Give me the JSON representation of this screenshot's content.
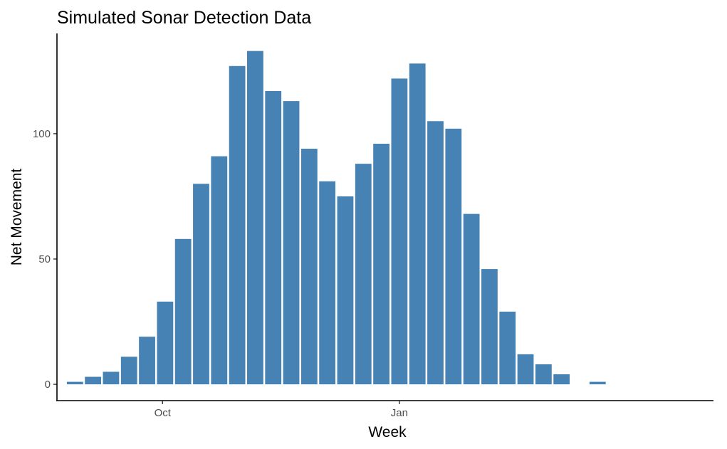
{
  "chart_data": {
    "type": "bar",
    "title": "Simulated Sonar Detection Data",
    "xlabel": "Week",
    "ylabel": "Net Movement",
    "x_axis_type": "date",
    "x_ticks": [
      {
        "date": "2022-10-01",
        "label": "Oct"
      },
      {
        "date": "2023-01-01",
        "label": "Jan"
      }
    ],
    "y_ticks": [
      0,
      50,
      100
    ],
    "ylim": [
      -6.5,
      140
    ],
    "xlim": [
      "2022-08-21",
      "2023-05-03"
    ],
    "grid": false,
    "legend": "none",
    "bar_color": "#4682B4",
    "weeks": [
      "2022-08-28",
      "2022-09-04",
      "2022-09-11",
      "2022-09-18",
      "2022-09-25",
      "2022-10-02",
      "2022-10-09",
      "2022-10-16",
      "2022-10-23",
      "2022-10-30",
      "2022-11-06",
      "2022-11-13",
      "2022-11-20",
      "2022-11-27",
      "2022-12-04",
      "2022-12-11",
      "2022-12-18",
      "2022-12-25",
      "2023-01-01",
      "2023-01-08",
      "2023-01-15",
      "2023-01-22",
      "2023-01-29",
      "2023-02-05",
      "2023-02-12",
      "2023-02-19",
      "2023-02-26",
      "2023-03-05",
      "2023-03-12",
      "2023-03-19",
      "2023-03-26",
      "2023-04-02",
      "2023-04-09",
      "2023-04-16",
      "2023-04-23"
    ],
    "values": [
      1,
      3,
      5,
      11,
      19,
      33,
      58,
      80,
      91,
      127,
      133,
      117,
      113,
      94,
      81,
      75,
      88,
      96,
      122,
      128,
      105,
      102,
      68,
      46,
      29,
      12,
      8,
      4,
      0,
      1,
      0,
      0,
      0,
      0,
      0
    ]
  }
}
